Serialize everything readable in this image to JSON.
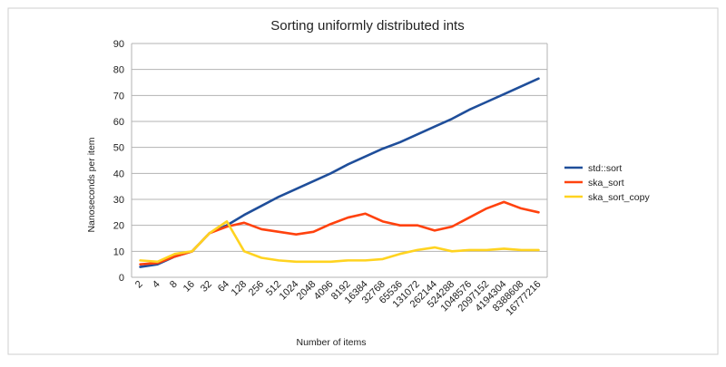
{
  "chart_data": {
    "type": "line",
    "title": "Sorting uniformly distributed ints",
    "xlabel": "Number of items",
    "ylabel": "Nanoseconds per item",
    "ylim": [
      0,
      90
    ],
    "yticks": [
      0,
      10,
      20,
      30,
      40,
      50,
      60,
      70,
      80,
      90
    ],
    "grid": true,
    "legend_position": "right",
    "categories": [
      "2",
      "4",
      "8",
      "16",
      "32",
      "64",
      "128",
      "256",
      "512",
      "1024",
      "2048",
      "4096",
      "8192",
      "16384",
      "32768",
      "65536",
      "131072",
      "262144",
      "524288",
      "1048576",
      "2097152",
      "4194304",
      "8388608",
      "16777216"
    ],
    "series": [
      {
        "name": "std::sort",
        "color": "#1f4e9a",
        "values": [
          4,
          5,
          8,
          10,
          17,
          20,
          24,
          27.5,
          31,
          34,
          37,
          40,
          43.5,
          46.5,
          49.5,
          52,
          55,
          58,
          61,
          64.5,
          67.5,
          70.5,
          73.5,
          76.5
        ]
      },
      {
        "name": "ska_sort",
        "color": "#ff420e",
        "values": [
          5,
          5.5,
          8,
          10,
          17,
          19.5,
          21,
          18.5,
          17.5,
          16.5,
          17.5,
          20.5,
          23,
          24.5,
          21.5,
          20,
          20,
          18,
          19.5,
          23,
          26.5,
          29,
          26.5,
          25
        ]
      },
      {
        "name": "ska_sort_copy",
        "color": "#ffd320",
        "values": [
          6.5,
          6,
          9,
          10,
          17,
          21.5,
          10,
          7.5,
          6.5,
          6,
          6,
          6,
          6.5,
          6.5,
          7,
          9,
          10.5,
          11.5,
          10,
          10.5,
          10.5,
          11,
          10.5,
          10.5
        ]
      }
    ]
  }
}
